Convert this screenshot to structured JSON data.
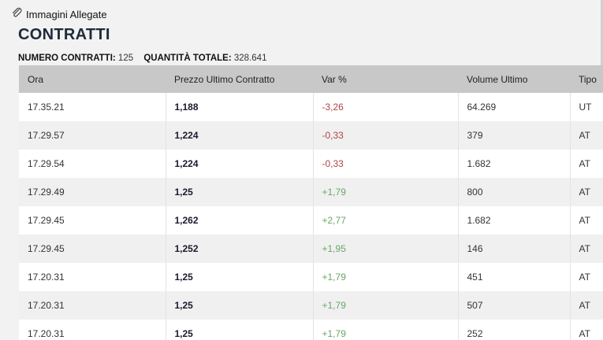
{
  "attachments": {
    "label": "Immagini Allegate"
  },
  "title": "CONTRATTI",
  "summary": {
    "count_label": "NUMERO CONTRATTI:",
    "count_value": "125",
    "total_label": "QUANTITÀ TOTALE:",
    "total_value": "328.641"
  },
  "table": {
    "columns": [
      "Ora",
      "Prezzo Ultimo Contratto",
      "Var %",
      "Volume Ultimo",
      "Tipo"
    ],
    "rows": [
      {
        "time": "17.35.21",
        "price": "1,188",
        "var": "-3,26",
        "volume": "64.269",
        "type": "UT"
      },
      {
        "time": "17.29.57",
        "price": "1,224",
        "var": "-0,33",
        "volume": "379",
        "type": "AT"
      },
      {
        "time": "17.29.54",
        "price": "1,224",
        "var": "-0,33",
        "volume": "1.682",
        "type": "AT"
      },
      {
        "time": "17.29.49",
        "price": "1,25",
        "var": "+1,79",
        "volume": "800",
        "type": "AT"
      },
      {
        "time": "17.29.45",
        "price": "1,262",
        "var": "+2,77",
        "volume": "1.682",
        "type": "AT"
      },
      {
        "time": "17.29.45",
        "price": "1,252",
        "var": "+1,95",
        "volume": "146",
        "type": "AT"
      },
      {
        "time": "17.20.31",
        "price": "1,25",
        "var": "+1,79",
        "volume": "451",
        "type": "AT"
      },
      {
        "time": "17.20.31",
        "price": "1,25",
        "var": "+1,79",
        "volume": "507",
        "type": "AT"
      },
      {
        "time": "17.20.31",
        "price": "1,25",
        "var": "+1,79",
        "volume": "252",
        "type": "AT"
      }
    ]
  },
  "colors": {
    "negative": "#b04444",
    "positive": "#6aa56a",
    "header_bg": "#c8c8c8"
  },
  "icons": {
    "attachment": "paperclip-icon"
  }
}
